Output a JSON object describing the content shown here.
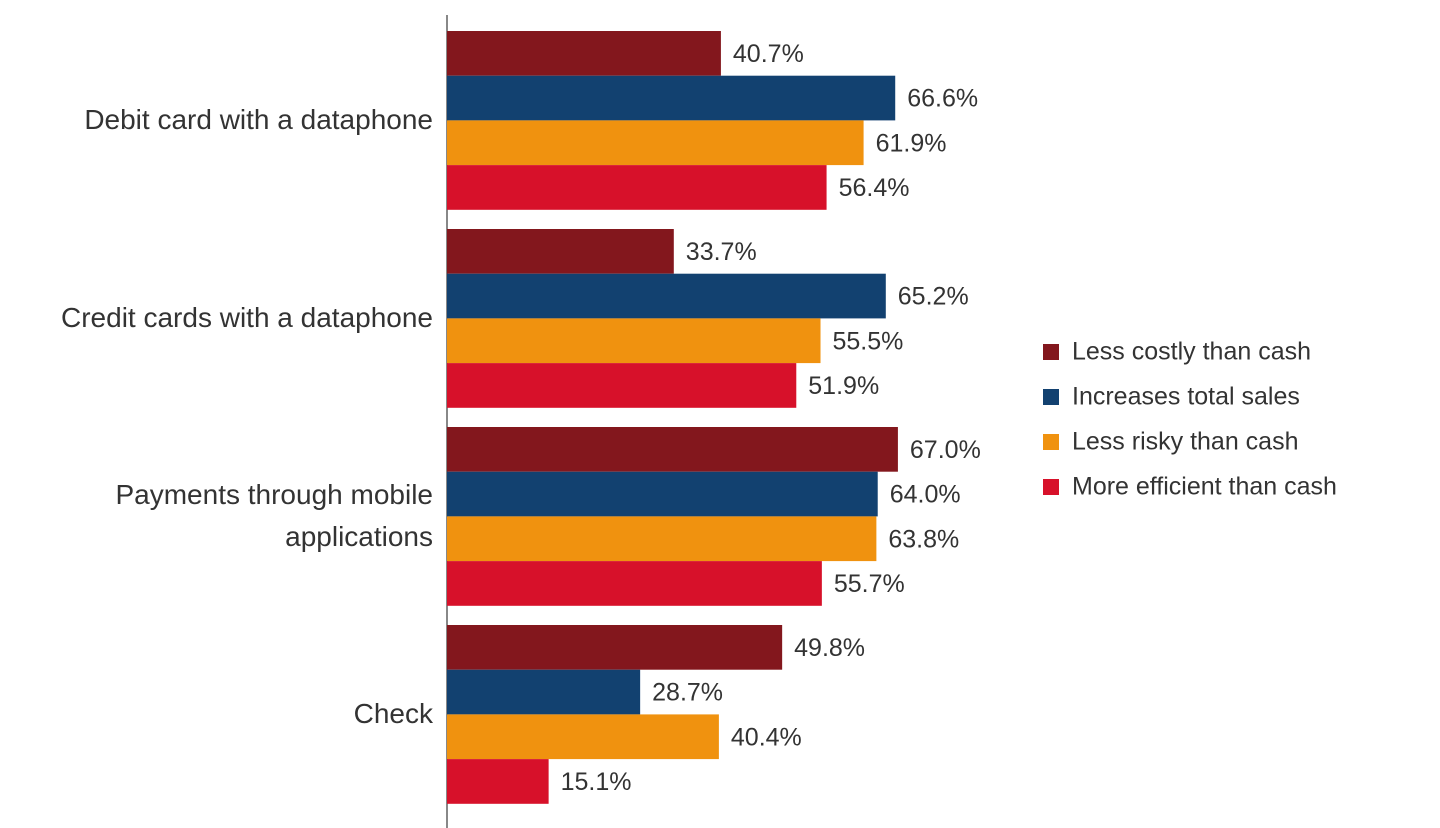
{
  "chart_data": {
    "type": "hbar",
    "categories": [
      "Debit card with a dataphone",
      "Credit cards with a dataphone",
      "Payments through mobile applications",
      "Check"
    ],
    "series": [
      {
        "name": "Less costly than cash",
        "color": "#83171d",
        "values": [
          40.7,
          33.7,
          67.0,
          49.8
        ],
        "value_labels": [
          "40.7%",
          "33.7%",
          "67.0%",
          "49.8%"
        ]
      },
      {
        "name": "Increases total sales",
        "color": "#124170",
        "values": [
          66.6,
          65.2,
          64.0,
          28.7
        ],
        "value_labels": [
          "66.6%",
          "65.2%",
          "64.0%",
          "28.7%"
        ]
      },
      {
        "name": "Less risky than cash",
        "color": "#f0920f",
        "values": [
          61.9,
          55.5,
          63.8,
          40.4
        ],
        "value_labels": [
          "61.9%",
          "55.5%",
          "63.8%",
          "40.4%"
        ]
      },
      {
        "name": "More efficient than cash",
        "color": "#d7112a",
        "values": [
          56.4,
          51.9,
          55.7,
          15.1
        ],
        "value_labels": [
          "56.4%",
          "51.9%",
          "55.7%",
          "15.1%"
        ]
      }
    ],
    "xlim": [
      0,
      100
    ],
    "legend": "right"
  }
}
